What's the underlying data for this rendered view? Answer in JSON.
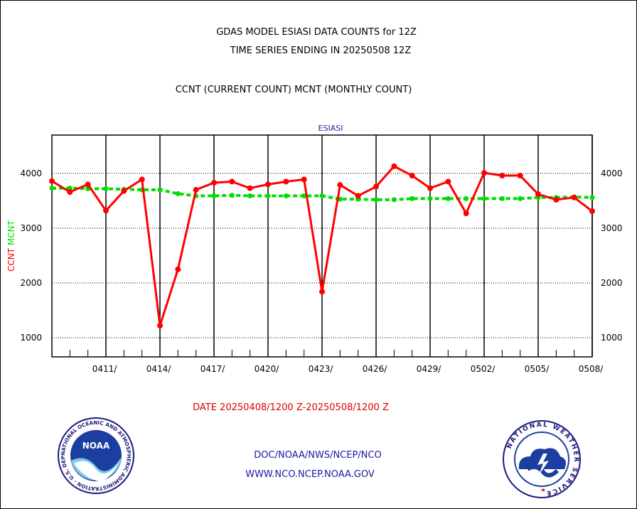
{
  "header": {
    "title": "GDAS MODEL ESIASI DATA COUNTS for 12Z",
    "subtitle": "TIME SERIES ENDING IN 20250508 12Z",
    "legend_line": "CCNT (CURRENT COUNT) MCNT (MONTHLY COUNT)"
  },
  "footer": {
    "date_range": "DATE 20250408/1200 Z-20250508/1200 Z",
    "org_path": "DOC/NOAA/NWS/NCEP/NCO",
    "website": "WWW.NCO.NCEP.NOAA.GOV"
  },
  "logos": {
    "noaa_label": "NOAA",
    "noaa_ring": "NATIONAL OCEANIC AND ATMOSPHERIC ADMINISTRATION · U.S. DEPARTMENT OF COMMERCE ·",
    "nws_ring": "NATIONAL WEATHER SERVICE"
  },
  "colors": {
    "ccnt": "#ff0000",
    "mcnt": "#00dd00",
    "text_blue": "#1a1aa0",
    "text_red": "#dd0000"
  },
  "chart_data": {
    "type": "line",
    "title": "ESIASI",
    "ylabel_series": [
      "CCNT",
      "MCNT"
    ],
    "ylim": [
      650,
      4700
    ],
    "yticks": [
      1000,
      2000,
      3000,
      4000
    ],
    "grid": true,
    "xtick_labels": [
      "0411/",
      "0414/",
      "0417/",
      "0420/",
      "0423/",
      "0426/",
      "0429/",
      "0502/",
      "0505/",
      "0508/"
    ],
    "x_day_start": "0408",
    "series": [
      {
        "name": "CCNT",
        "values": [
          3860,
          3660,
          3800,
          3320,
          3680,
          3890,
          1220,
          2250,
          3700,
          3830,
          3850,
          3730,
          3800,
          3850,
          3890,
          1840,
          3790,
          3590,
          3760,
          4130,
          3960,
          3730,
          3850,
          3270,
          4010,
          3960,
          3960,
          3620,
          3520,
          3560,
          3310
        ]
      },
      {
        "name": "MCNT",
        "values": [
          3730,
          3730,
          3720,
          3720,
          3710,
          3700,
          3700,
          3630,
          3590,
          3590,
          3600,
          3590,
          3590,
          3590,
          3590,
          3590,
          3530,
          3530,
          3520,
          3520,
          3540,
          3540,
          3540,
          3540,
          3540,
          3540,
          3540,
          3560,
          3560,
          3570,
          3560
        ]
      }
    ]
  }
}
